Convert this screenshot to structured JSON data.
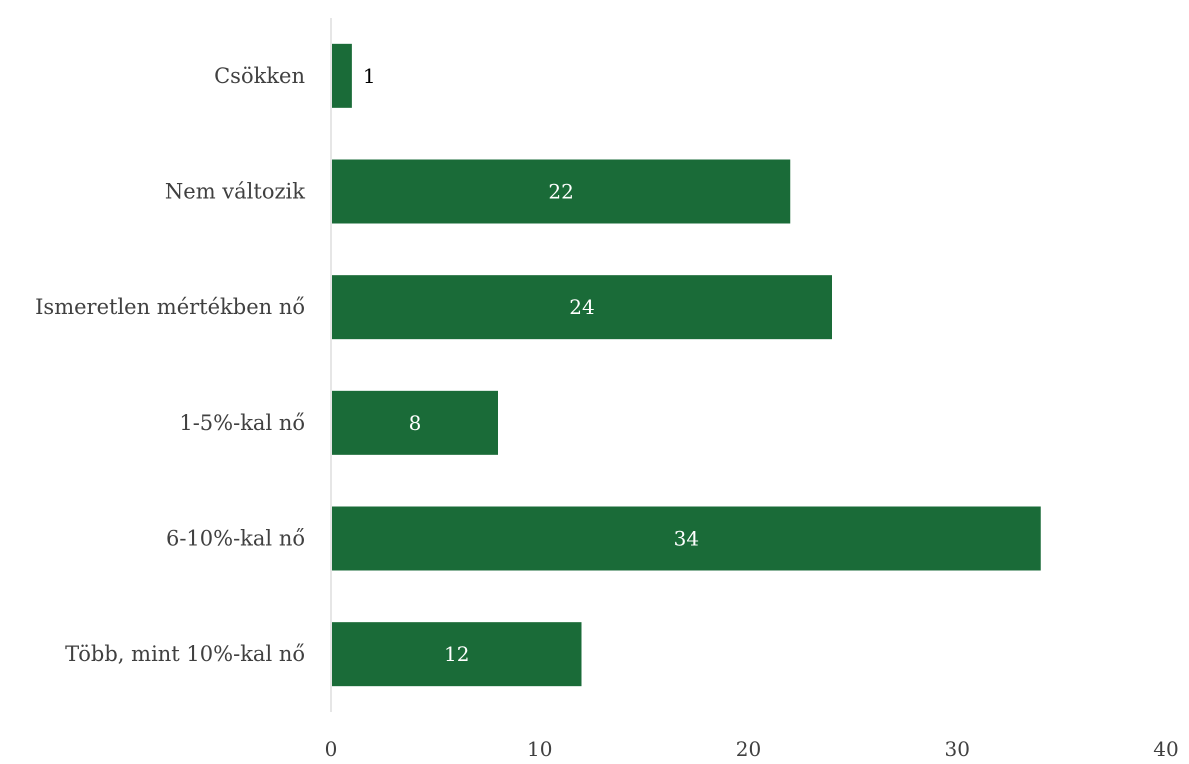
{
  "chart_data": {
    "type": "bar",
    "orientation": "horizontal",
    "title": "",
    "xlabel": "",
    "ylabel": "",
    "categories": [
      "Csökken",
      "Nem változik",
      "Ismeretlen mértékben nő",
      "1-5%-kal nő",
      "6-10%-kal nő",
      "Több, mint 10%-kal nő"
    ],
    "values": [
      1,
      22,
      24,
      8,
      34,
      12
    ],
    "data_labels": [
      "1",
      "22",
      "24",
      "8",
      "34",
      "12"
    ],
    "xlim": [
      0,
      40
    ],
    "x_ticks": [
      "0",
      "10",
      "20",
      "30",
      "40"
    ],
    "grid": false,
    "legend": "none",
    "colors": {
      "bar": "#1a6b38",
      "axis": "#d9d9d9",
      "label_inside": "#ffffff",
      "label_outside": "#000000"
    }
  }
}
